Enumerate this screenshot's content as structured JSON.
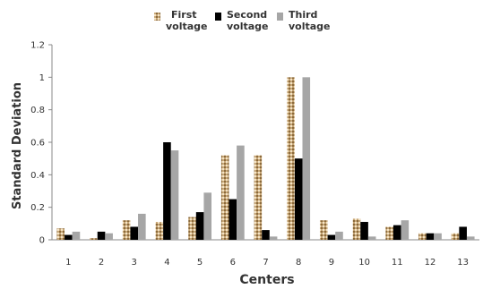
{
  "chart_data": {
    "type": "bar",
    "title": "",
    "xlabel": "Centers",
    "ylabel": "Standard Deviation",
    "categories": [
      "1",
      "2",
      "3",
      "4",
      "5",
      "6",
      "7",
      "8",
      "9",
      "10",
      "11",
      "12",
      "13"
    ],
    "ylim": [
      0,
      1.2
    ],
    "yticks": [
      "0",
      "0.2",
      "0.4",
      "0.6",
      "0.8",
      "1",
      "1.2"
    ],
    "grid": false,
    "legend_position": "top",
    "series": [
      {
        "name": "First voltage",
        "color": "#c8a777",
        "pattern": "dotted-tan",
        "values": [
          0.07,
          0.01,
          0.12,
          0.11,
          0.14,
          0.52,
          0.52,
          1.0,
          0.12,
          0.13,
          0.08,
          0.04,
          0.04
        ]
      },
      {
        "name": "Second voltage",
        "color": "#000000",
        "values": [
          0.03,
          0.05,
          0.08,
          0.6,
          0.17,
          0.25,
          0.06,
          0.5,
          0.03,
          0.11,
          0.09,
          0.04,
          0.08
        ]
      },
      {
        "name": "Third voltage",
        "color": "#a6a6a6",
        "values": [
          0.05,
          0.04,
          0.16,
          0.55,
          0.29,
          0.58,
          0.02,
          1.0,
          0.05,
          0.02,
          0.12,
          0.04,
          0.02
        ]
      }
    ]
  }
}
